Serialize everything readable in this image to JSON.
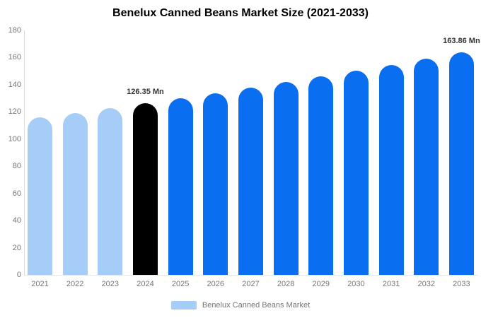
{
  "chart_data": {
    "type": "bar",
    "title": "Benelux Canned Beans Market Size (2021-2033)",
    "categories": [
      "2021",
      "2022",
      "2023",
      "2024",
      "2025",
      "2026",
      "2027",
      "2028",
      "2029",
      "2030",
      "2031",
      "2032",
      "2033"
    ],
    "values": [
      115.86,
      119.25,
      122.75,
      126.35,
      130.05,
      133.86,
      137.78,
      141.82,
      145.97,
      150.25,
      154.65,
      159.18,
      163.86
    ],
    "bar_color_roles": [
      "historical",
      "historical",
      "historical",
      "highlight",
      "forecast",
      "forecast",
      "forecast",
      "forecast",
      "forecast",
      "forecast",
      "forecast",
      "forecast",
      "forecast"
    ],
    "colors": {
      "historical": "#a5cdf8",
      "highlight": "#000000",
      "forecast": "#0a6ef0",
      "axis_line": "#dcdcdc",
      "tick_text": "#757575",
      "data_label_text": "#333333"
    },
    "data_labels": {
      "3": "126.35 Mn",
      "12": "163.86 Mn"
    },
    "xlabel": "",
    "ylabel": "",
    "ylim": [
      0,
      180
    ],
    "yticks": [
      0,
      20,
      40,
      60,
      80,
      100,
      120,
      140,
      160,
      180
    ],
    "grid": false,
    "legend": {
      "position": "bottom",
      "label": "Benelux Canned Beans Market",
      "swatch_color": "#a5cdf8"
    }
  }
}
